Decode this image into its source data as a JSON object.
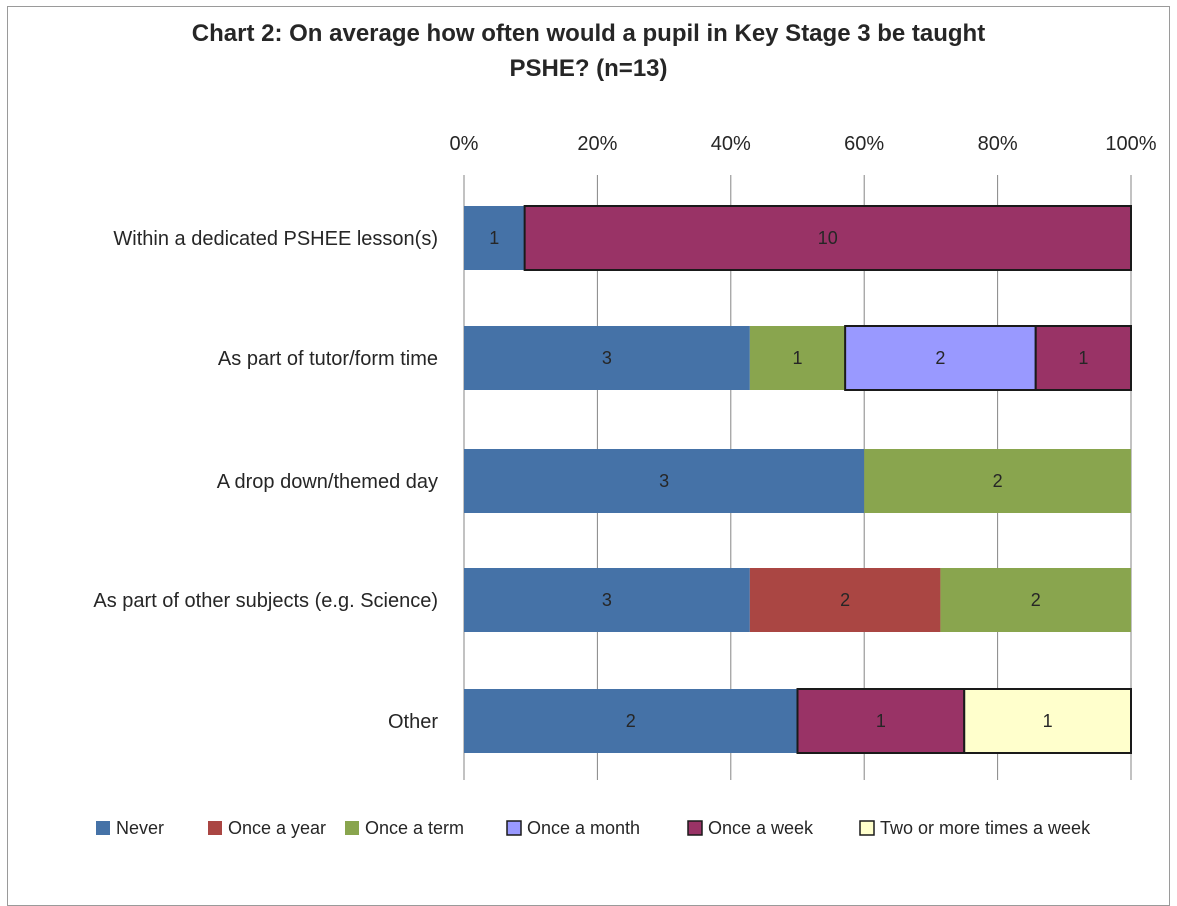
{
  "chart_data": {
    "type": "bar",
    "orientation": "horizontal",
    "stacking": "percent",
    "title": [
      "Chart 2: On average how often would a pupil in Key Stage 3 be taught",
      "PSHE? (n=13)"
    ],
    "x_axis": {
      "position": "top",
      "ticks": [
        "0%",
        "20%",
        "40%",
        "60%",
        "80%",
        "100%"
      ],
      "range": [
        0,
        100
      ]
    },
    "grid": true,
    "legend": {
      "position": "bottom"
    },
    "categories": [
      "Within a dedicated PSHEE lesson(s)",
      "As part of tutor/form time",
      "A drop down/themed day",
      "As part of other subjects (e.g. Science)",
      "Other"
    ],
    "series": [
      {
        "name": "Never",
        "color": "#4572A7",
        "values": [
          1,
          3,
          3,
          3,
          2
        ]
      },
      {
        "name": "Once a year",
        "color": "#AA4643",
        "values": [
          0,
          0,
          0,
          2,
          0
        ]
      },
      {
        "name": "Once a term",
        "color": "#89A54E",
        "values": [
          0,
          1,
          2,
          2,
          0
        ]
      },
      {
        "name": "Once a month",
        "color": "#9999FF",
        "values": [
          0,
          2,
          0,
          0,
          0
        ]
      },
      {
        "name": "Once a week",
        "color": "#993366",
        "values": [
          10,
          1,
          0,
          0,
          1
        ]
      },
      {
        "name": "Two or more times a week",
        "color": "#FFFFCC",
        "values": [
          0,
          0,
          0,
          0,
          1
        ]
      }
    ]
  }
}
